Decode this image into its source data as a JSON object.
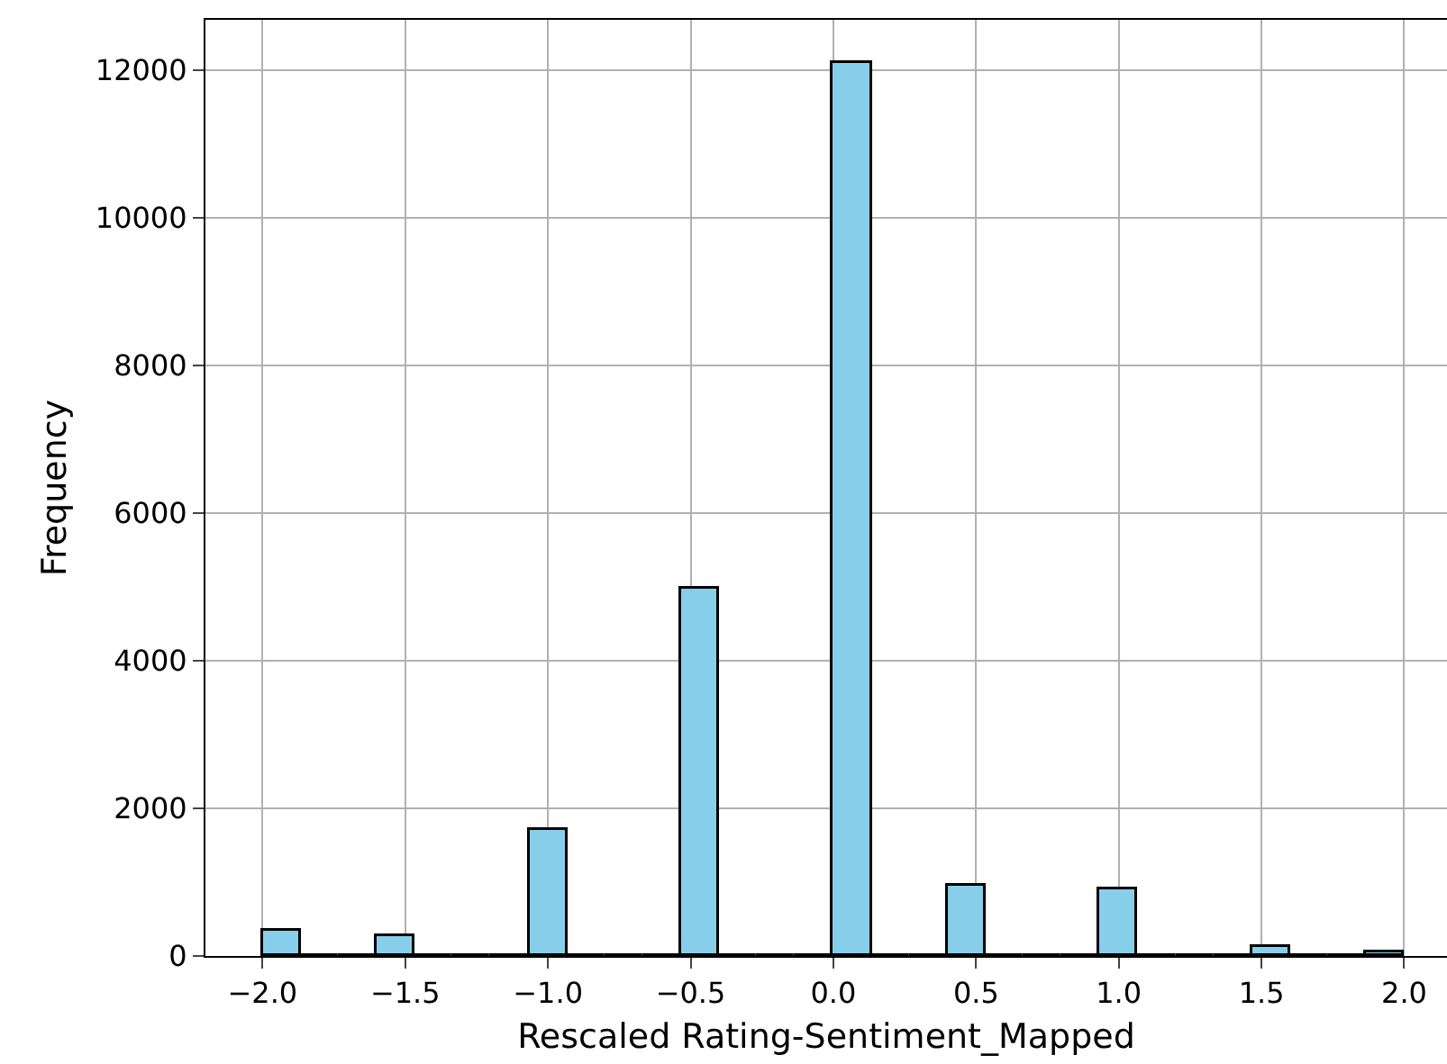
{
  "chart_data": {
    "type": "histogram",
    "xlabel": "Rescaled Rating-Sentiment_Mapped",
    "ylabel": "Frequency",
    "bins": [
      -2,
      -1.8667,
      -1.7333,
      -1.6,
      -1.4667,
      -1.3333,
      -1.2,
      -1.0667,
      -0.9333,
      -0.8,
      -0.6667,
      -0.5333,
      -0.4,
      -0.2667,
      -0.1333,
      0,
      0.1333,
      0.2667,
      0.4,
      0.5333,
      0.6667,
      0.8,
      0.9333,
      1.0667,
      1.2,
      1.3333,
      1.4667,
      1.6,
      1.7333,
      1.8667,
      2
    ],
    "values": [
      340,
      0,
      0,
      280,
      0,
      0,
      0,
      1710,
      0,
      0,
      0,
      4980,
      0,
      0,
      0,
      12100,
      0,
      0,
      950,
      0,
      0,
      0,
      900,
      0,
      0,
      0,
      130,
      0,
      0,
      60
    ],
    "color": "#87ceeb",
    "xlim": [
      -2.2,
      2.15
    ],
    "ylim": [
      0,
      12680
    ],
    "xticks": [
      {
        "value": -2,
        "label": "−2.0"
      },
      {
        "value": -1.5,
        "label": "−1.5"
      },
      {
        "value": -1,
        "label": "−1.0"
      },
      {
        "value": -0.5,
        "label": "−0.5"
      },
      {
        "value": 0,
        "label": "0.0"
      },
      {
        "value": 0.5,
        "label": "0.5"
      },
      {
        "value": 1,
        "label": "1.0"
      },
      {
        "value": 1.5,
        "label": "1.5"
      },
      {
        "value": 2,
        "label": "2.0"
      }
    ],
    "yticks": [
      0,
      2000,
      4000,
      6000,
      8000,
      10000,
      12000
    ],
    "grid": true
  }
}
